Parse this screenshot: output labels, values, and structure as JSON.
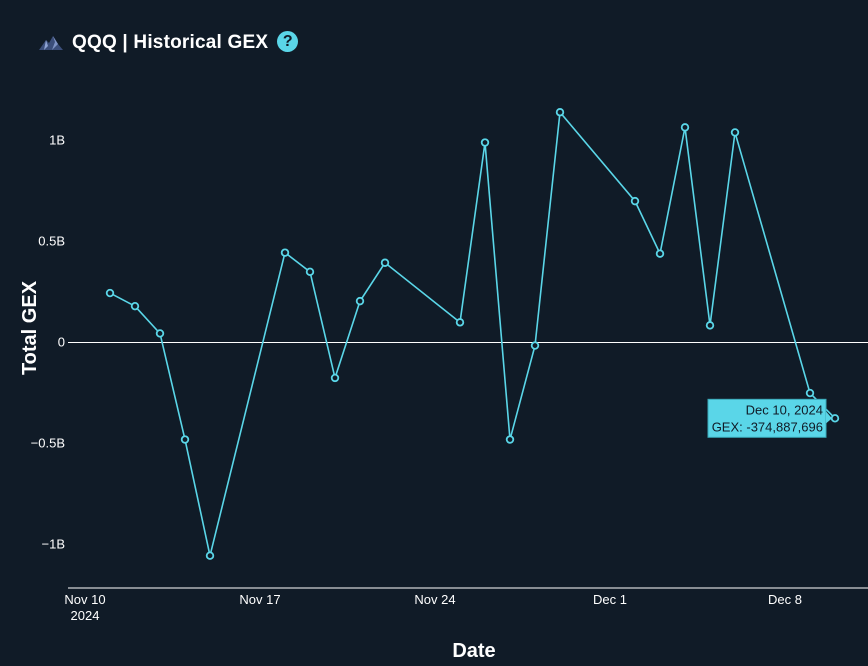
{
  "header": {
    "title": "QQQ | Historical GEX",
    "logo_icon": "mountain-logo-icon",
    "help_icon": "question-circle-icon",
    "help_glyph": "?"
  },
  "colors": {
    "background": "#101b27",
    "line": "#5ad6e8",
    "tooltip_bg": "#5ad6e8",
    "zero_line": "#ffffff"
  },
  "chart_data": {
    "type": "line",
    "title": "",
    "xlabel": "Date",
    "ylabel": "Total GEX",
    "ylim": [
      -1.2,
      1.25
    ],
    "y_ticks": [
      {
        "value": 1,
        "label": "1B"
      },
      {
        "value": 0.5,
        "label": "0.5B"
      },
      {
        "value": 0,
        "label": "0"
      },
      {
        "value": -0.5,
        "label": "−0.5B"
      },
      {
        "value": -1,
        "label": "−1B"
      }
    ],
    "x_ticks": [
      {
        "date": "2024-11-10",
        "label": "Nov 10",
        "sublabel": "2024"
      },
      {
        "date": "2024-11-17",
        "label": "Nov 17"
      },
      {
        "date": "2024-11-24",
        "label": "Nov 24"
      },
      {
        "date": "2024-12-01",
        "label": "Dec 1"
      },
      {
        "date": "2024-12-08",
        "label": "Dec 8"
      }
    ],
    "grid": false,
    "zero_line": true,
    "series": [
      {
        "points": [
          {
            "x": "2024-11-11",
            "y": 0.245
          },
          {
            "x": "2024-11-12",
            "y": 0.18
          },
          {
            "x": "2024-11-13",
            "y": 0.045
          },
          {
            "x": "2024-11-14",
            "y": -0.48
          },
          {
            "x": "2024-11-15",
            "y": -1.055
          },
          {
            "x": "2024-11-18",
            "y": 0.445
          },
          {
            "x": "2024-11-19",
            "y": 0.35
          },
          {
            "x": "2024-11-20",
            "y": -0.175
          },
          {
            "x": "2024-11-21",
            "y": 0.205
          },
          {
            "x": "2024-11-22",
            "y": 0.395
          },
          {
            "x": "2024-11-25",
            "y": 0.1
          },
          {
            "x": "2024-11-26",
            "y": 0.99
          },
          {
            "x": "2024-11-27",
            "y": -0.48
          },
          {
            "x": "2024-11-28",
            "y": -0.015
          },
          {
            "x": "2024-11-29",
            "y": 1.14
          },
          {
            "x": "2024-12-02",
            "y": 0.7
          },
          {
            "x": "2024-12-03",
            "y": 0.44
          },
          {
            "x": "2024-12-04",
            "y": 1.065
          },
          {
            "x": "2024-12-05",
            "y": 0.085
          },
          {
            "x": "2024-12-06",
            "y": 1.04
          },
          {
            "x": "2024-12-09",
            "y": -0.25
          },
          {
            "x": "2024-12-10",
            "y": -0.375
          }
        ]
      }
    ],
    "tooltip": {
      "date_label": "Dec 10, 2024",
      "value_label": "GEX: -374,887,696",
      "target_x": "2024-12-10",
      "target_y": -0.375
    }
  }
}
